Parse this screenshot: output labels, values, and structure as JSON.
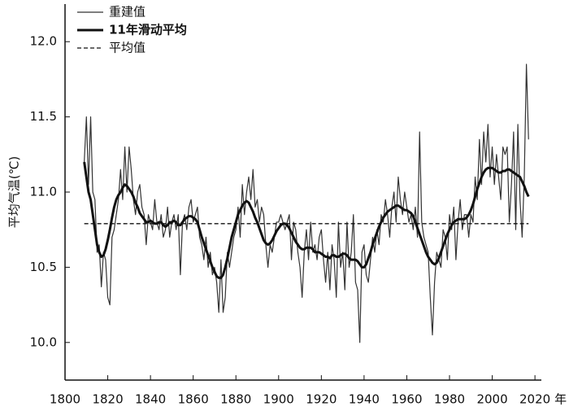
{
  "chart_data": {
    "type": "line",
    "ylabel": "平均气温(℃)",
    "xlabel": "年",
    "xlim": [
      1800,
      2023
    ],
    "ylim": [
      9.75,
      12.25
    ],
    "xticks": [
      1800,
      1820,
      1840,
      1860,
      1880,
      1900,
      1920,
      1940,
      1960,
      1980,
      2000,
      2020
    ],
    "yticks": [
      {
        "value": 10,
        "label": "10.0"
      },
      10.5,
      {
        "value": 11,
        "label": "11.0"
      },
      11.5,
      {
        "value": 12,
        "label": "12.0"
      }
    ],
    "x": [
      1809,
      1810,
      1811,
      1812,
      1813,
      1814,
      1815,
      1816,
      1817,
      1818,
      1819,
      1820,
      1821,
      1822,
      1823,
      1824,
      1825,
      1826,
      1827,
      1828,
      1829,
      1830,
      1831,
      1832,
      1833,
      1834,
      1835,
      1836,
      1837,
      1838,
      1839,
      1840,
      1841,
      1842,
      1843,
      1844,
      1845,
      1846,
      1847,
      1848,
      1849,
      1850,
      1851,
      1852,
      1853,
      1854,
      1855,
      1856,
      1857,
      1858,
      1859,
      1860,
      1861,
      1862,
      1863,
      1864,
      1865,
      1866,
      1867,
      1868,
      1869,
      1870,
      1871,
      1872,
      1873,
      1874,
      1875,
      1876,
      1877,
      1878,
      1879,
      1880,
      1881,
      1882,
      1883,
      1884,
      1885,
      1886,
      1887,
      1888,
      1889,
      1890,
      1891,
      1892,
      1893,
      1894,
      1895,
      1896,
      1897,
      1898,
      1899,
      1900,
      1901,
      1902,
      1903,
      1904,
      1905,
      1906,
      1907,
      1908,
      1909,
      1910,
      1911,
      1912,
      1913,
      1914,
      1915,
      1916,
      1917,
      1918,
      1919,
      1920,
      1921,
      1922,
      1923,
      1924,
      1925,
      1926,
      1927,
      1928,
      1929,
      1930,
      1931,
      1932,
      1933,
      1934,
      1935,
      1936,
      1937,
      1938,
      1939,
      1940,
      1941,
      1942,
      1943,
      1944,
      1945,
      1946,
      1947,
      1948,
      1949,
      1950,
      1951,
      1952,
      1953,
      1954,
      1955,
      1956,
      1957,
      1958,
      1959,
      1960,
      1961,
      1962,
      1963,
      1964,
      1965,
      1966,
      1967,
      1968,
      1969,
      1970,
      1971,
      1972,
      1973,
      1974,
      1975,
      1976,
      1977,
      1978,
      1979,
      1980,
      1981,
      1982,
      1983,
      1984,
      1985,
      1986,
      1987,
      1988,
      1989,
      1990,
      1991,
      1992,
      1993,
      1994,
      1995,
      1996,
      1997,
      1998,
      1999,
      2000,
      2001,
      2002,
      2003,
      2004,
      2005,
      2006,
      2007,
      2008,
      2009,
      2010,
      2011,
      2012,
      2013,
      2014,
      2015,
      2016,
      2017
    ],
    "series": [
      {
        "name": "重建值",
        "color": "#333333",
        "style": "thin",
        "values": [
          11.2,
          11.5,
          11.05,
          11.5,
          11.0,
          10.95,
          10.6,
          10.65,
          10.37,
          10.6,
          10.55,
          10.3,
          10.25,
          10.7,
          10.75,
          10.85,
          10.95,
          11.15,
          10.95,
          11.3,
          11.0,
          11.3,
          11.15,
          10.95,
          10.85,
          11.0,
          11.05,
          10.9,
          10.85,
          10.65,
          10.85,
          10.8,
          10.75,
          10.95,
          10.8,
          10.75,
          10.85,
          10.7,
          10.75,
          10.9,
          10.7,
          10.8,
          10.85,
          10.75,
          10.85,
          10.45,
          10.8,
          10.85,
          10.75,
          10.9,
          10.95,
          10.8,
          10.85,
          10.9,
          10.7,
          10.65,
          10.55,
          10.7,
          10.5,
          10.6,
          10.45,
          10.5,
          10.4,
          10.2,
          10.55,
          10.2,
          10.3,
          10.6,
          10.5,
          10.6,
          10.7,
          10.75,
          10.9,
          10.7,
          11.05,
          10.85,
          11.0,
          11.1,
          10.95,
          11.15,
          10.9,
          10.95,
          10.8,
          10.9,
          10.85,
          10.65,
          10.5,
          10.65,
          10.6,
          10.7,
          10.8,
          10.8,
          10.85,
          10.8,
          10.75,
          10.8,
          10.85,
          10.55,
          10.8,
          10.75,
          10.6,
          10.5,
          10.3,
          10.6,
          10.75,
          10.55,
          10.8,
          10.6,
          10.65,
          10.55,
          10.7,
          10.75,
          10.55,
          10.4,
          10.6,
          10.35,
          10.65,
          10.55,
          10.3,
          10.8,
          10.5,
          10.6,
          10.35,
          10.8,
          10.5,
          10.6,
          10.85,
          10.4,
          10.35,
          10.0,
          10.6,
          10.65,
          10.45,
          10.4,
          10.55,
          10.7,
          10.6,
          10.75,
          10.65,
          10.85,
          10.8,
          10.95,
          10.85,
          10.7,
          10.9,
          11.0,
          10.8,
          11.1,
          10.95,
          10.85,
          11.0,
          10.9,
          10.8,
          10.85,
          10.75,
          10.9,
          10.7,
          11.4,
          10.8,
          10.7,
          10.65,
          10.6,
          10.3,
          10.05,
          10.4,
          10.6,
          10.55,
          10.5,
          10.75,
          10.7,
          10.55,
          10.85,
          10.75,
          10.9,
          10.55,
          10.8,
          10.95,
          10.75,
          10.85,
          10.85,
          10.7,
          10.85,
          10.8,
          11.1,
          10.95,
          11.35,
          11.05,
          11.4,
          11.2,
          11.45,
          11.1,
          11.3,
          11.05,
          11.25,
          11.1,
          10.95,
          11.3,
          11.25,
          11.3,
          10.8,
          11.05,
          11.4,
          10.75,
          11.45,
          10.95,
          10.7,
          11.1,
          11.85,
          11.35
        ]
      },
      {
        "name": "11年滑动平均",
        "color": "#111111",
        "style": "thick",
        "values": [
          11.2,
          11.1,
          11.0,
          10.95,
          10.85,
          10.75,
          10.65,
          10.6,
          10.57,
          10.58,
          10.62,
          10.68,
          10.75,
          10.83,
          10.9,
          10.95,
          10.98,
          11.0,
          11.03,
          11.05,
          11.04,
          11.02,
          11.0,
          10.97,
          10.93,
          10.9,
          10.86,
          10.84,
          10.82,
          10.8,
          10.8,
          10.81,
          10.8,
          10.79,
          10.79,
          10.8,
          10.8,
          10.78,
          10.77,
          10.78,
          10.8,
          10.8,
          10.81,
          10.8,
          10.78,
          10.78,
          10.8,
          10.82,
          10.83,
          10.84,
          10.84,
          10.83,
          10.82,
          10.8,
          10.75,
          10.7,
          10.66,
          10.62,
          10.58,
          10.54,
          10.5,
          10.47,
          10.44,
          10.43,
          10.43,
          10.45,
          10.5,
          10.56,
          10.63,
          10.7,
          10.75,
          10.8,
          10.85,
          10.88,
          10.91,
          10.93,
          10.94,
          10.93,
          10.9,
          10.87,
          10.83,
          10.8,
          10.76,
          10.72,
          10.68,
          10.66,
          10.65,
          10.66,
          10.68,
          10.71,
          10.74,
          10.76,
          10.78,
          10.79,
          10.79,
          10.78,
          10.76,
          10.73,
          10.7,
          10.67,
          10.65,
          10.63,
          10.62,
          10.62,
          10.63,
          10.63,
          10.63,
          10.62,
          10.6,
          10.6,
          10.6,
          10.59,
          10.58,
          10.57,
          10.57,
          10.56,
          10.58,
          10.58,
          10.57,
          10.57,
          10.58,
          10.59,
          10.59,
          10.58,
          10.56,
          10.55,
          10.55,
          10.55,
          10.54,
          10.52,
          10.5,
          10.5,
          10.52,
          10.56,
          10.6,
          10.65,
          10.69,
          10.73,
          10.77,
          10.8,
          10.83,
          10.85,
          10.87,
          10.88,
          10.89,
          10.9,
          10.91,
          10.91,
          10.9,
          10.89,
          10.88,
          10.88,
          10.87,
          10.86,
          10.84,
          10.8,
          10.76,
          10.72,
          10.68,
          10.64,
          10.6,
          10.57,
          10.55,
          10.53,
          10.52,
          10.53,
          10.56,
          10.6,
          10.64,
          10.68,
          10.72,
          10.75,
          10.78,
          10.8,
          10.81,
          10.82,
          10.82,
          10.82,
          10.82,
          10.83,
          10.85,
          10.88,
          10.92,
          10.97,
          11.02,
          11.06,
          11.1,
          11.13,
          11.15,
          11.16,
          11.16,
          11.16,
          11.15,
          11.14,
          11.13,
          11.13,
          11.14,
          11.14,
          11.15,
          11.15,
          11.14,
          11.13,
          11.12,
          11.11,
          11.1,
          11.07,
          11.04,
          11.0,
          10.97
        ]
      }
    ],
    "mean": {
      "name": "平均值",
      "color": "#111111",
      "style": "dashed",
      "value": 10.79
    }
  }
}
